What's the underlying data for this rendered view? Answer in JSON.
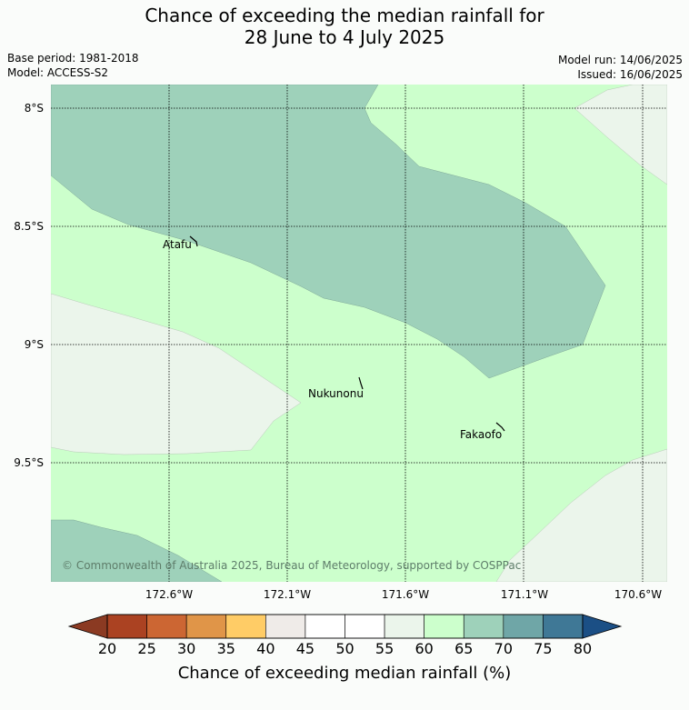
{
  "title": {
    "line1": "Chance of exceeding the median rainfall for",
    "line2": "28 June to 4 July 2025"
  },
  "meta": {
    "base_period": "Base period: 1981-2018",
    "model": "Model: ACCESS-S2",
    "model_run": "Model run: 14/06/2025",
    "issued": "Issued: 16/06/2025"
  },
  "map": {
    "lat_labels": [
      "8°S",
      "8.5°S",
      "9°S",
      "9.5°S"
    ],
    "lon_labels": [
      "172.6°W",
      "172.1°W",
      "171.6°W",
      "171.1°W",
      "170.6°W"
    ],
    "places": [
      {
        "name": "Atafu"
      },
      {
        "name": "Nukunonu"
      },
      {
        "name": "Fakaofo"
      }
    ],
    "copyright": "© Commonwealth of Australia 2025, Bureau of Meteorology, supported by COSPPac",
    "region_colors": {
      "60-65": "#ccffcc",
      "65-70": "#9ed1ba",
      "55-60": "#ebf5eb"
    }
  },
  "colorbar": {
    "ticks": [
      "20",
      "25",
      "30",
      "35",
      "40",
      "45",
      "50",
      "55",
      "60",
      "65",
      "70",
      "75",
      "80"
    ],
    "colors": [
      "#ab4222",
      "#cc6633",
      "#e09548",
      "#ffcc66",
      "#efebe8",
      "#ffffff",
      "#ffffff",
      "#ebf5eb",
      "#ccffcc",
      "#9ed1ba",
      "#6fa6a7",
      "#3f7896"
    ],
    "under_color": "#8b3a22",
    "over_color": "#1b4f85",
    "label": "Chance of exceeding median rainfall (%)"
  }
}
